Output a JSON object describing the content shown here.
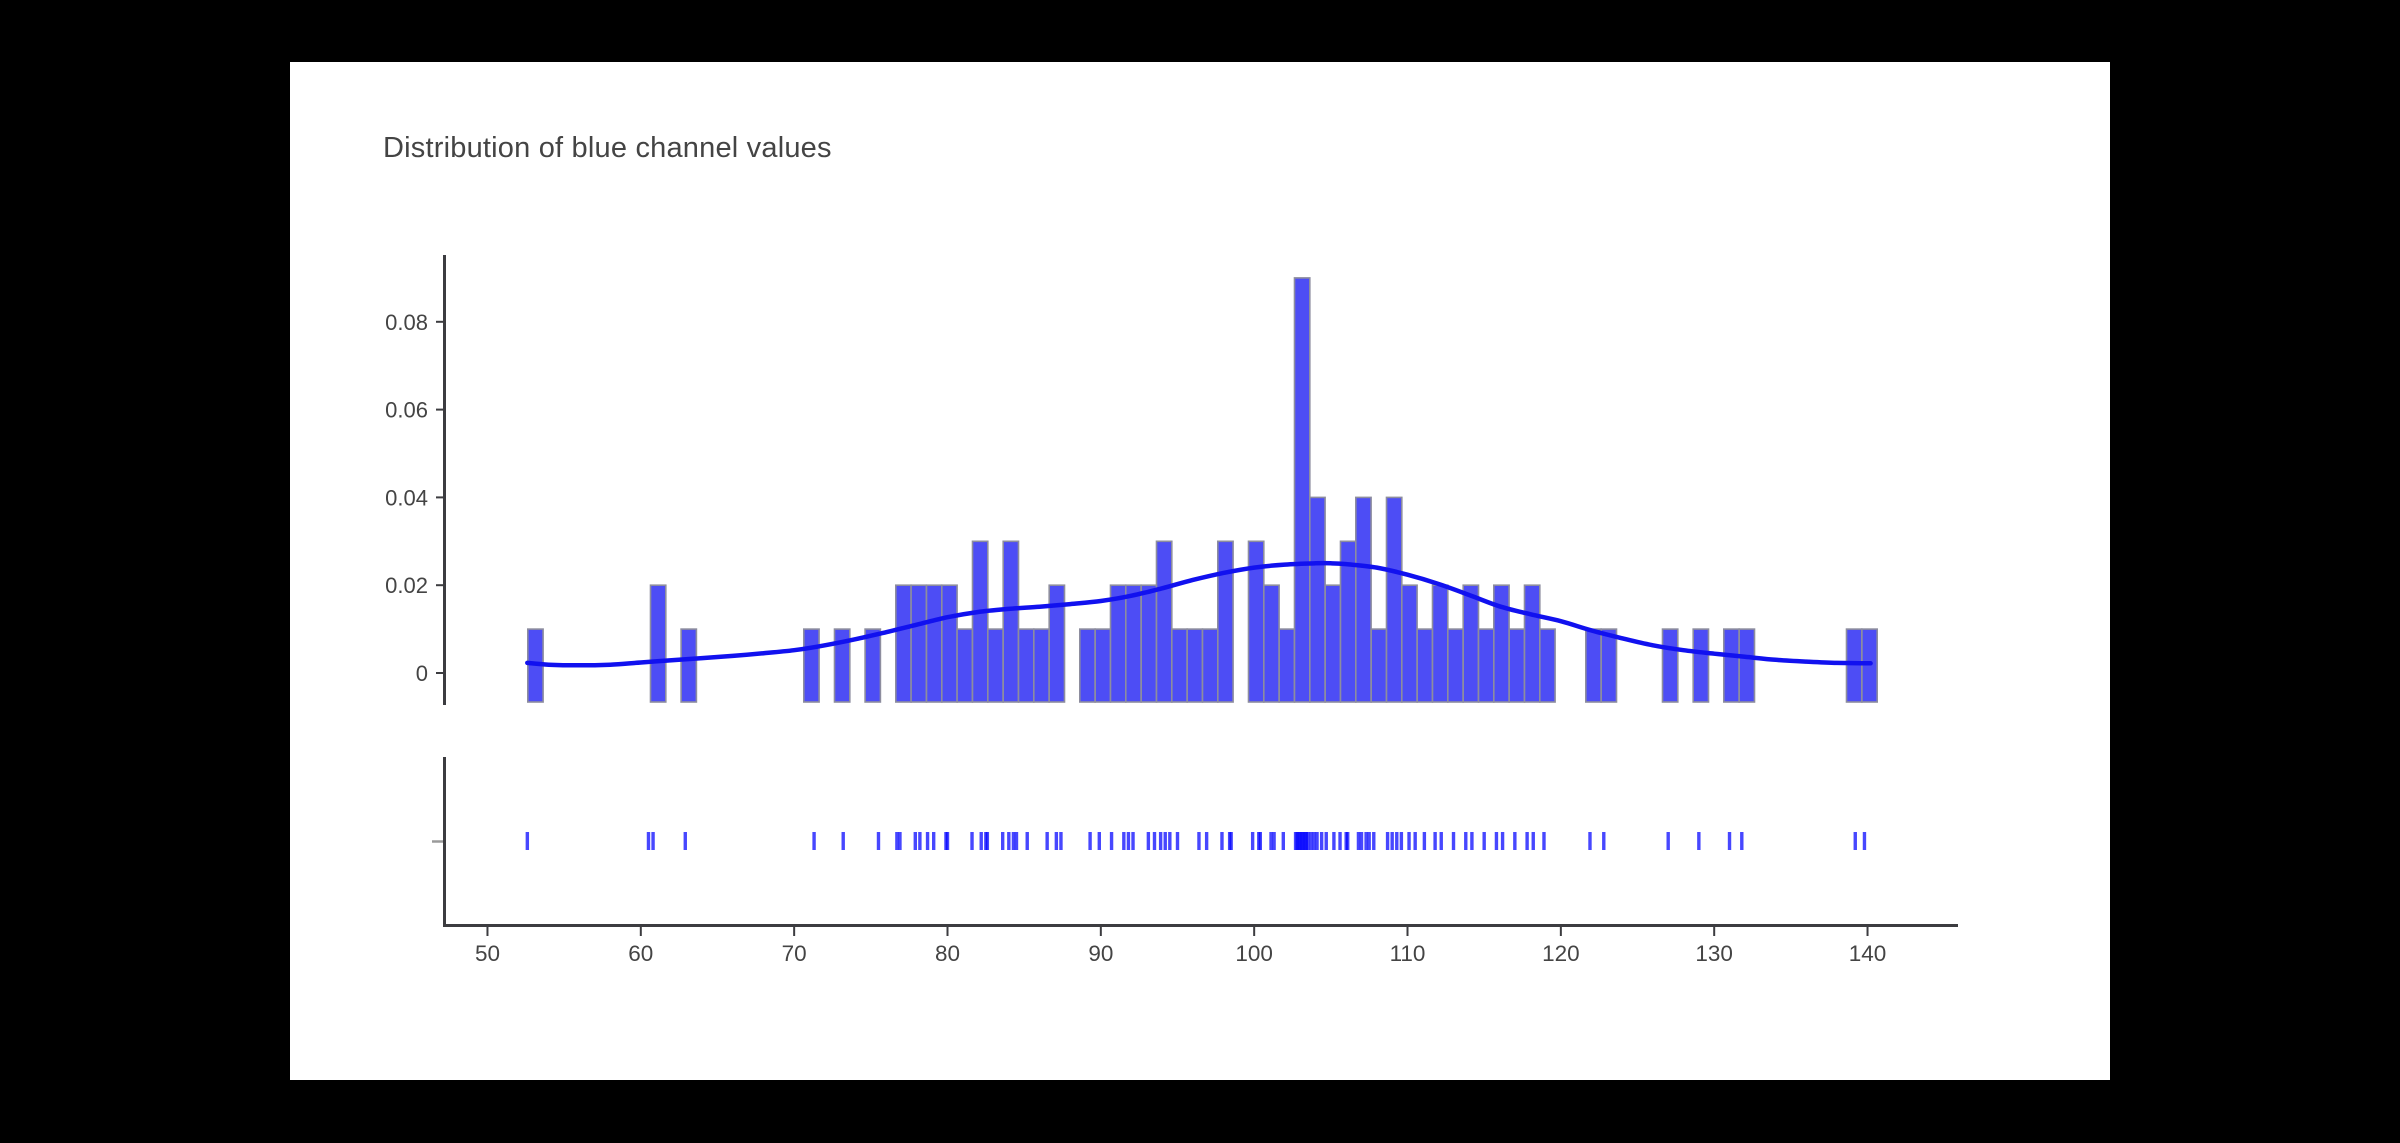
{
  "page": {
    "background": "#000000",
    "card_background": "#ffffff"
  },
  "chart_data": {
    "type": "bar",
    "subtype": "distplot: histogram + kde curve + rug marks (two stacked subplots, shared x axis)",
    "title": "Distribution of blue channel values",
    "xlabel": "",
    "ylabel": "",
    "legend": "none",
    "grid": false,
    "x_range": [
      47.1,
      145.9
    ],
    "y_range": [
      -0.0068,
      0.0952
    ],
    "x_ticks": [
      50,
      60,
      70,
      80,
      90,
      100,
      110,
      120,
      130,
      140
    ],
    "y_ticks": [
      0,
      0.02,
      0.04,
      0.06,
      0.08
    ],
    "y_tick_labels": [
      "0",
      "0.02",
      "0.04",
      "0.06",
      "0.08"
    ],
    "bin_width": 1,
    "histogram_bins": [
      {
        "x": 53,
        "density": 0.01
      },
      {
        "x": 61,
        "density": 0.02
      },
      {
        "x": 63,
        "density": 0.01
      },
      {
        "x": 71,
        "density": 0.01
      },
      {
        "x": 73,
        "density": 0.01
      },
      {
        "x": 75,
        "density": 0.01
      },
      {
        "x": 77,
        "density": 0.02
      },
      {
        "x": 78,
        "density": 0.02
      },
      {
        "x": 79,
        "density": 0.02
      },
      {
        "x": 80,
        "density": 0.02
      },
      {
        "x": 81,
        "density": 0.01
      },
      {
        "x": 82,
        "density": 0.03
      },
      {
        "x": 83,
        "density": 0.01
      },
      {
        "x": 84,
        "density": 0.03
      },
      {
        "x": 85,
        "density": 0.01
      },
      {
        "x": 86,
        "density": 0.01
      },
      {
        "x": 87,
        "density": 0.02
      },
      {
        "x": 89,
        "density": 0.01
      },
      {
        "x": 90,
        "density": 0.01
      },
      {
        "x": 91,
        "density": 0.02
      },
      {
        "x": 92,
        "density": 0.02
      },
      {
        "x": 93,
        "density": 0.02
      },
      {
        "x": 94,
        "density": 0.03
      },
      {
        "x": 95,
        "density": 0.01
      },
      {
        "x": 96,
        "density": 0.01
      },
      {
        "x": 97,
        "density": 0.01
      },
      {
        "x": 98,
        "density": 0.03
      },
      {
        "x": 100,
        "density": 0.03
      },
      {
        "x": 101,
        "density": 0.02
      },
      {
        "x": 102,
        "density": 0.01
      },
      {
        "x": 103,
        "density": 0.09
      },
      {
        "x": 104,
        "density": 0.04
      },
      {
        "x": 105,
        "density": 0.02
      },
      {
        "x": 106,
        "density": 0.03
      },
      {
        "x": 107,
        "density": 0.04
      },
      {
        "x": 108,
        "density": 0.01
      },
      {
        "x": 109,
        "density": 0.04
      },
      {
        "x": 110,
        "density": 0.02
      },
      {
        "x": 111,
        "density": 0.01
      },
      {
        "x": 112,
        "density": 0.02
      },
      {
        "x": 113,
        "density": 0.01
      },
      {
        "x": 114,
        "density": 0.02
      },
      {
        "x": 115,
        "density": 0.01
      },
      {
        "x": 116,
        "density": 0.02
      },
      {
        "x": 117,
        "density": 0.01
      },
      {
        "x": 118,
        "density": 0.02
      },
      {
        "x": 119,
        "density": 0.01
      },
      {
        "x": 122,
        "density": 0.01
      },
      {
        "x": 123,
        "density": 0.01
      },
      {
        "x": 127,
        "density": 0.01
      },
      {
        "x": 129,
        "density": 0.01
      },
      {
        "x": 131,
        "density": 0.01
      },
      {
        "x": 132,
        "density": 0.01
      },
      {
        "x": 139,
        "density": 0.01
      },
      {
        "x": 140,
        "density": 0.01
      }
    ],
    "kde_curve": {
      "x": [
        52.6,
        54,
        56,
        58,
        60,
        62,
        64,
        66,
        68,
        70,
        72,
        74,
        76,
        78,
        80,
        82,
        84,
        86,
        88,
        90,
        92,
        94,
        96,
        98,
        100,
        102,
        104,
        105,
        106,
        108,
        110,
        112,
        114,
        116,
        118,
        120,
        122,
        124,
        126,
        128,
        130,
        132,
        134,
        136,
        138,
        140.2
      ],
      "y": [
        0.0023,
        0.0019,
        0.00175,
        0.0019,
        0.0024,
        0.0029,
        0.0034,
        0.0039,
        0.0045,
        0.0052,
        0.0063,
        0.0077,
        0.0093,
        0.011,
        0.0127,
        0.0139,
        0.0146,
        0.0151,
        0.0157,
        0.0164,
        0.0176,
        0.0193,
        0.0212,
        0.0228,
        0.024,
        0.0247,
        0.025,
        0.025,
        0.0248,
        0.024,
        0.0224,
        0.0203,
        0.0178,
        0.0152,
        0.0134,
        0.0118,
        0.0097,
        0.0079,
        0.0063,
        0.0052,
        0.0044,
        0.0037,
        0.003,
        0.0026,
        0.0023,
        0.0022
      ]
    },
    "rug_x": [
      52.6,
      60.5,
      60.8,
      62.9,
      71.3,
      73.2,
      75.5,
      76.7,
      76.9,
      77.9,
      78.2,
      78.7,
      79.1,
      79.9,
      80.0,
      81.6,
      82.2,
      82.5,
      82.6,
      83.6,
      84.0,
      84.3,
      84.5,
      85.2,
      86.5,
      87.1,
      87.4,
      89.3,
      89.9,
      90.7,
      91.5,
      91.8,
      92.1,
      93.1,
      93.5,
      93.9,
      94.2,
      94.5,
      95.0,
      96.4,
      96.9,
      97.9,
      98.4,
      98.5,
      99.9,
      100.3,
      100.4,
      101.1,
      101.3,
      101.9,
      102.7,
      102.8,
      102.9,
      103.0,
      103.1,
      103.2,
      103.3,
      103.4,
      103.5,
      103.7,
      103.9,
      104.1,
      104.4,
      104.7,
      105.2,
      105.6,
      106.0,
      106.1,
      106.8,
      107.0,
      107.3,
      107.5,
      107.8,
      108.7,
      109.0,
      109.3,
      109.6,
      110.1,
      110.5,
      111.1,
      111.8,
      112.2,
      113.0,
      113.8,
      114.2,
      115.0,
      115.8,
      116.2,
      117.0,
      117.8,
      118.2,
      118.9,
      121.9,
      122.8,
      127.0,
      129.0,
      131.0,
      131.8,
      139.2,
      139.8
    ],
    "colors": {
      "bar_fill": "#4d4df5",
      "bar_border": "#8d8d9e",
      "kde_line": "#1111ef",
      "rug_mark": "#0000ff",
      "axis_line": "#3c3c40",
      "tick_label": "#444444",
      "title": "#444444"
    }
  }
}
